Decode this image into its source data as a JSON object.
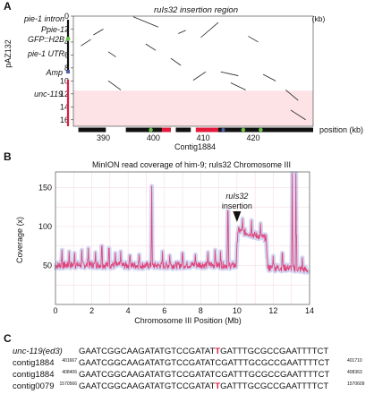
{
  "panel_a": {
    "letter": "A",
    "title": "ruIs32 insertion region",
    "y_unit": "(kb)",
    "y_ticks": [
      "0",
      "2",
      "4",
      "6",
      "8",
      "10",
      "12",
      "14",
      "16"
    ],
    "x_ticks": [
      "390",
      "400",
      "410",
      "420"
    ],
    "x_label": "position (kb)",
    "contig_label": "Contig1884",
    "plasmid_label": "pAZ132",
    "left_labels": [
      "pie-1 intron",
      "Ppie-1",
      "GFP::H2B",
      "pie-1 UTR",
      "Amp",
      "unc-119"
    ]
  },
  "panel_b": {
    "letter": "B",
    "title": "MinION read coverage of him-9; ruIs32 Chromosome III",
    "annotation": [
      "ruIs32",
      "insertion"
    ],
    "colors": {
      "line": "#e0457b",
      "band": "#9fa6e2"
    }
  },
  "panel_c": {
    "letter": "C",
    "rows": [
      {
        "name": "unc-119(ed3)",
        "start": "",
        "seq_a": "GAATCGGCAAGATATGTCCGATAT",
        "mut": "T",
        "seq_b": "GATTTGCGCCGAATTTTCT",
        "end": ""
      },
      {
        "name": "contig1884",
        "start": "401667",
        "seq_a": "GAATCGGCAAGATATGTCCGATAT",
        "mut": "C",
        "seq_b": "GATTTGCGCCGAATTTTCT",
        "end": "401710"
      },
      {
        "name": "contig1884",
        "start": "408406",
        "seq_a": "GAATCGGCAAGATATGTCCGATAT",
        "mut": "C",
        "seq_b": "GATTTGCGCCGAATTTTCT",
        "end": "408363"
      },
      {
        "name": "contig0079",
        "start": "1570566",
        "seq_a": "GAATCGGCAAGATATGTCCGATAT",
        "mut": "T",
        "seq_b": "GATTTGCGCCGAATTTTCT",
        "end": "1570609"
      }
    ]
  },
  "chart_data": [
    {
      "type": "scatter",
      "title": "ruIs32 insertion region",
      "xlabel": "position (kb)",
      "ylabel": "(kb)",
      "xlim": [
        384,
        432
      ],
      "ylim": [
        0,
        17
      ],
      "y_inverted": true,
      "x_ticks": [
        390,
        400,
        410,
        420
      ],
      "y_ticks": [
        0,
        2,
        4,
        6,
        8,
        10,
        12,
        14,
        16
      ],
      "segments": [
        {
          "x": [
            385.5,
            387.5
          ],
          "y": [
            4.6,
            3.6
          ]
        },
        {
          "x": [
            388.0,
            390.0
          ],
          "y": [
            2.9,
            2.0
          ]
        },
        {
          "x": [
            391.0,
            392.5
          ],
          "y": [
            5.5,
            6.3
          ]
        },
        {
          "x": [
            391.0,
            393.5
          ],
          "y": [
            10.0,
            11.4
          ]
        },
        {
          "x": [
            396.0,
            401.0
          ],
          "y": [
            0.1,
            1.7
          ]
        },
        {
          "x": [
            398.5,
            400.5
          ],
          "y": [
            4.3,
            5.3
          ]
        },
        {
          "x": [
            403.5,
            405.5
          ],
          "y": [
            6.5,
            7.6
          ]
        },
        {
          "x": [
            405.0,
            406.5
          ],
          "y": [
            2.7,
            2.2
          ]
        },
        {
          "x": [
            408.0,
            410.5
          ],
          "y": [
            9.9,
            8.6
          ]
        },
        {
          "x": [
            409.5,
            413.0
          ],
          "y": [
            3.3,
            1.0
          ]
        },
        {
          "x": [
            413.5,
            417.0
          ],
          "y": [
            8.6,
            9.2
          ]
        },
        {
          "x": [
            415.5,
            418.5
          ],
          "y": [
            10.3,
            11.4
          ]
        },
        {
          "x": [
            419.0,
            421.0
          ],
          "y": [
            3.1,
            4.0
          ]
        },
        {
          "x": [
            422.0,
            424.5
          ],
          "y": [
            9.0,
            10.0
          ]
        },
        {
          "x": [
            426.5,
            429.0
          ],
          "y": [
            11.4,
            13.0
          ]
        },
        {
          "x": [
            427.5,
            430.5
          ],
          "y": [
            14.5,
            16.0
          ]
        }
      ],
      "highlight_y": [
        11.5,
        17.0
      ],
      "contig_blocks": [
        {
          "start": 385.0,
          "end": 390.5,
          "color": "#111111"
        },
        {
          "start": 394.5,
          "end": 403.5,
          "color": "#111111"
        },
        {
          "start": 401.7,
          "end": 403.5,
          "color": "#e21b3c"
        },
        {
          "start": 404.5,
          "end": 407.5,
          "color": "#111111"
        },
        {
          "start": 408.5,
          "end": 413.0,
          "color": "#e21b3c"
        },
        {
          "start": 413.0,
          "end": 432.0,
          "color": "#111111"
        }
      ],
      "green_markers": [
        399.5,
        418.0,
        421.5
      ],
      "blue_marker": 414.0
    },
    {
      "type": "line",
      "title": "MinION read coverage of him-9; ruIs32 Chromosome III",
      "xlabel": "Chromosome III Position (Mb)",
      "ylabel": "Coverage (x)",
      "xlim": [
        0,
        14
      ],
      "ylim": [
        0,
        170
      ],
      "x_ticks": [
        0,
        2,
        4,
        6,
        8,
        10,
        12,
        14
      ],
      "y_ticks": [
        50,
        100,
        150
      ],
      "grid": true,
      "baseline_levels": [
        {
          "x": 0.0,
          "y": 50
        },
        {
          "x": 2.0,
          "y": 51
        },
        {
          "x": 4.0,
          "y": 50
        },
        {
          "x": 6.0,
          "y": 50
        },
        {
          "x": 8.0,
          "y": 51
        },
        {
          "x": 9.95,
          "y": 50
        },
        {
          "x": 10.05,
          "y": 95
        },
        {
          "x": 11.6,
          "y": 85
        },
        {
          "x": 11.7,
          "y": 47
        },
        {
          "x": 13.0,
          "y": 47
        },
        {
          "x": 13.9,
          "y": 44
        }
      ],
      "spikes": [
        {
          "x": 0.35,
          "y": 70
        },
        {
          "x": 0.75,
          "y": 68
        },
        {
          "x": 1.05,
          "y": 66
        },
        {
          "x": 1.45,
          "y": 70
        },
        {
          "x": 1.8,
          "y": 72
        },
        {
          "x": 2.2,
          "y": 67
        },
        {
          "x": 2.55,
          "y": 75
        },
        {
          "x": 2.95,
          "y": 72
        },
        {
          "x": 3.3,
          "y": 66
        },
        {
          "x": 3.6,
          "y": 68
        },
        {
          "x": 4.1,
          "y": 63
        },
        {
          "x": 4.6,
          "y": 64
        },
        {
          "x": 5.3,
          "y": 152
        },
        {
          "x": 5.9,
          "y": 68
        },
        {
          "x": 6.3,
          "y": 63
        },
        {
          "x": 7.0,
          "y": 66
        },
        {
          "x": 7.7,
          "y": 64
        },
        {
          "x": 8.4,
          "y": 67
        },
        {
          "x": 8.8,
          "y": 70
        },
        {
          "x": 9.1,
          "y": 68
        },
        {
          "x": 9.5,
          "y": 120
        },
        {
          "x": 10.3,
          "y": 110
        },
        {
          "x": 10.8,
          "y": 108
        },
        {
          "x": 11.3,
          "y": 104
        },
        {
          "x": 12.0,
          "y": 62
        },
        {
          "x": 12.5,
          "y": 66
        },
        {
          "x": 13.05,
          "y": 168
        },
        {
          "x": 13.25,
          "y": 168
        },
        {
          "x": 13.6,
          "y": 60
        }
      ],
      "annotation_x": 10.0
    }
  ]
}
